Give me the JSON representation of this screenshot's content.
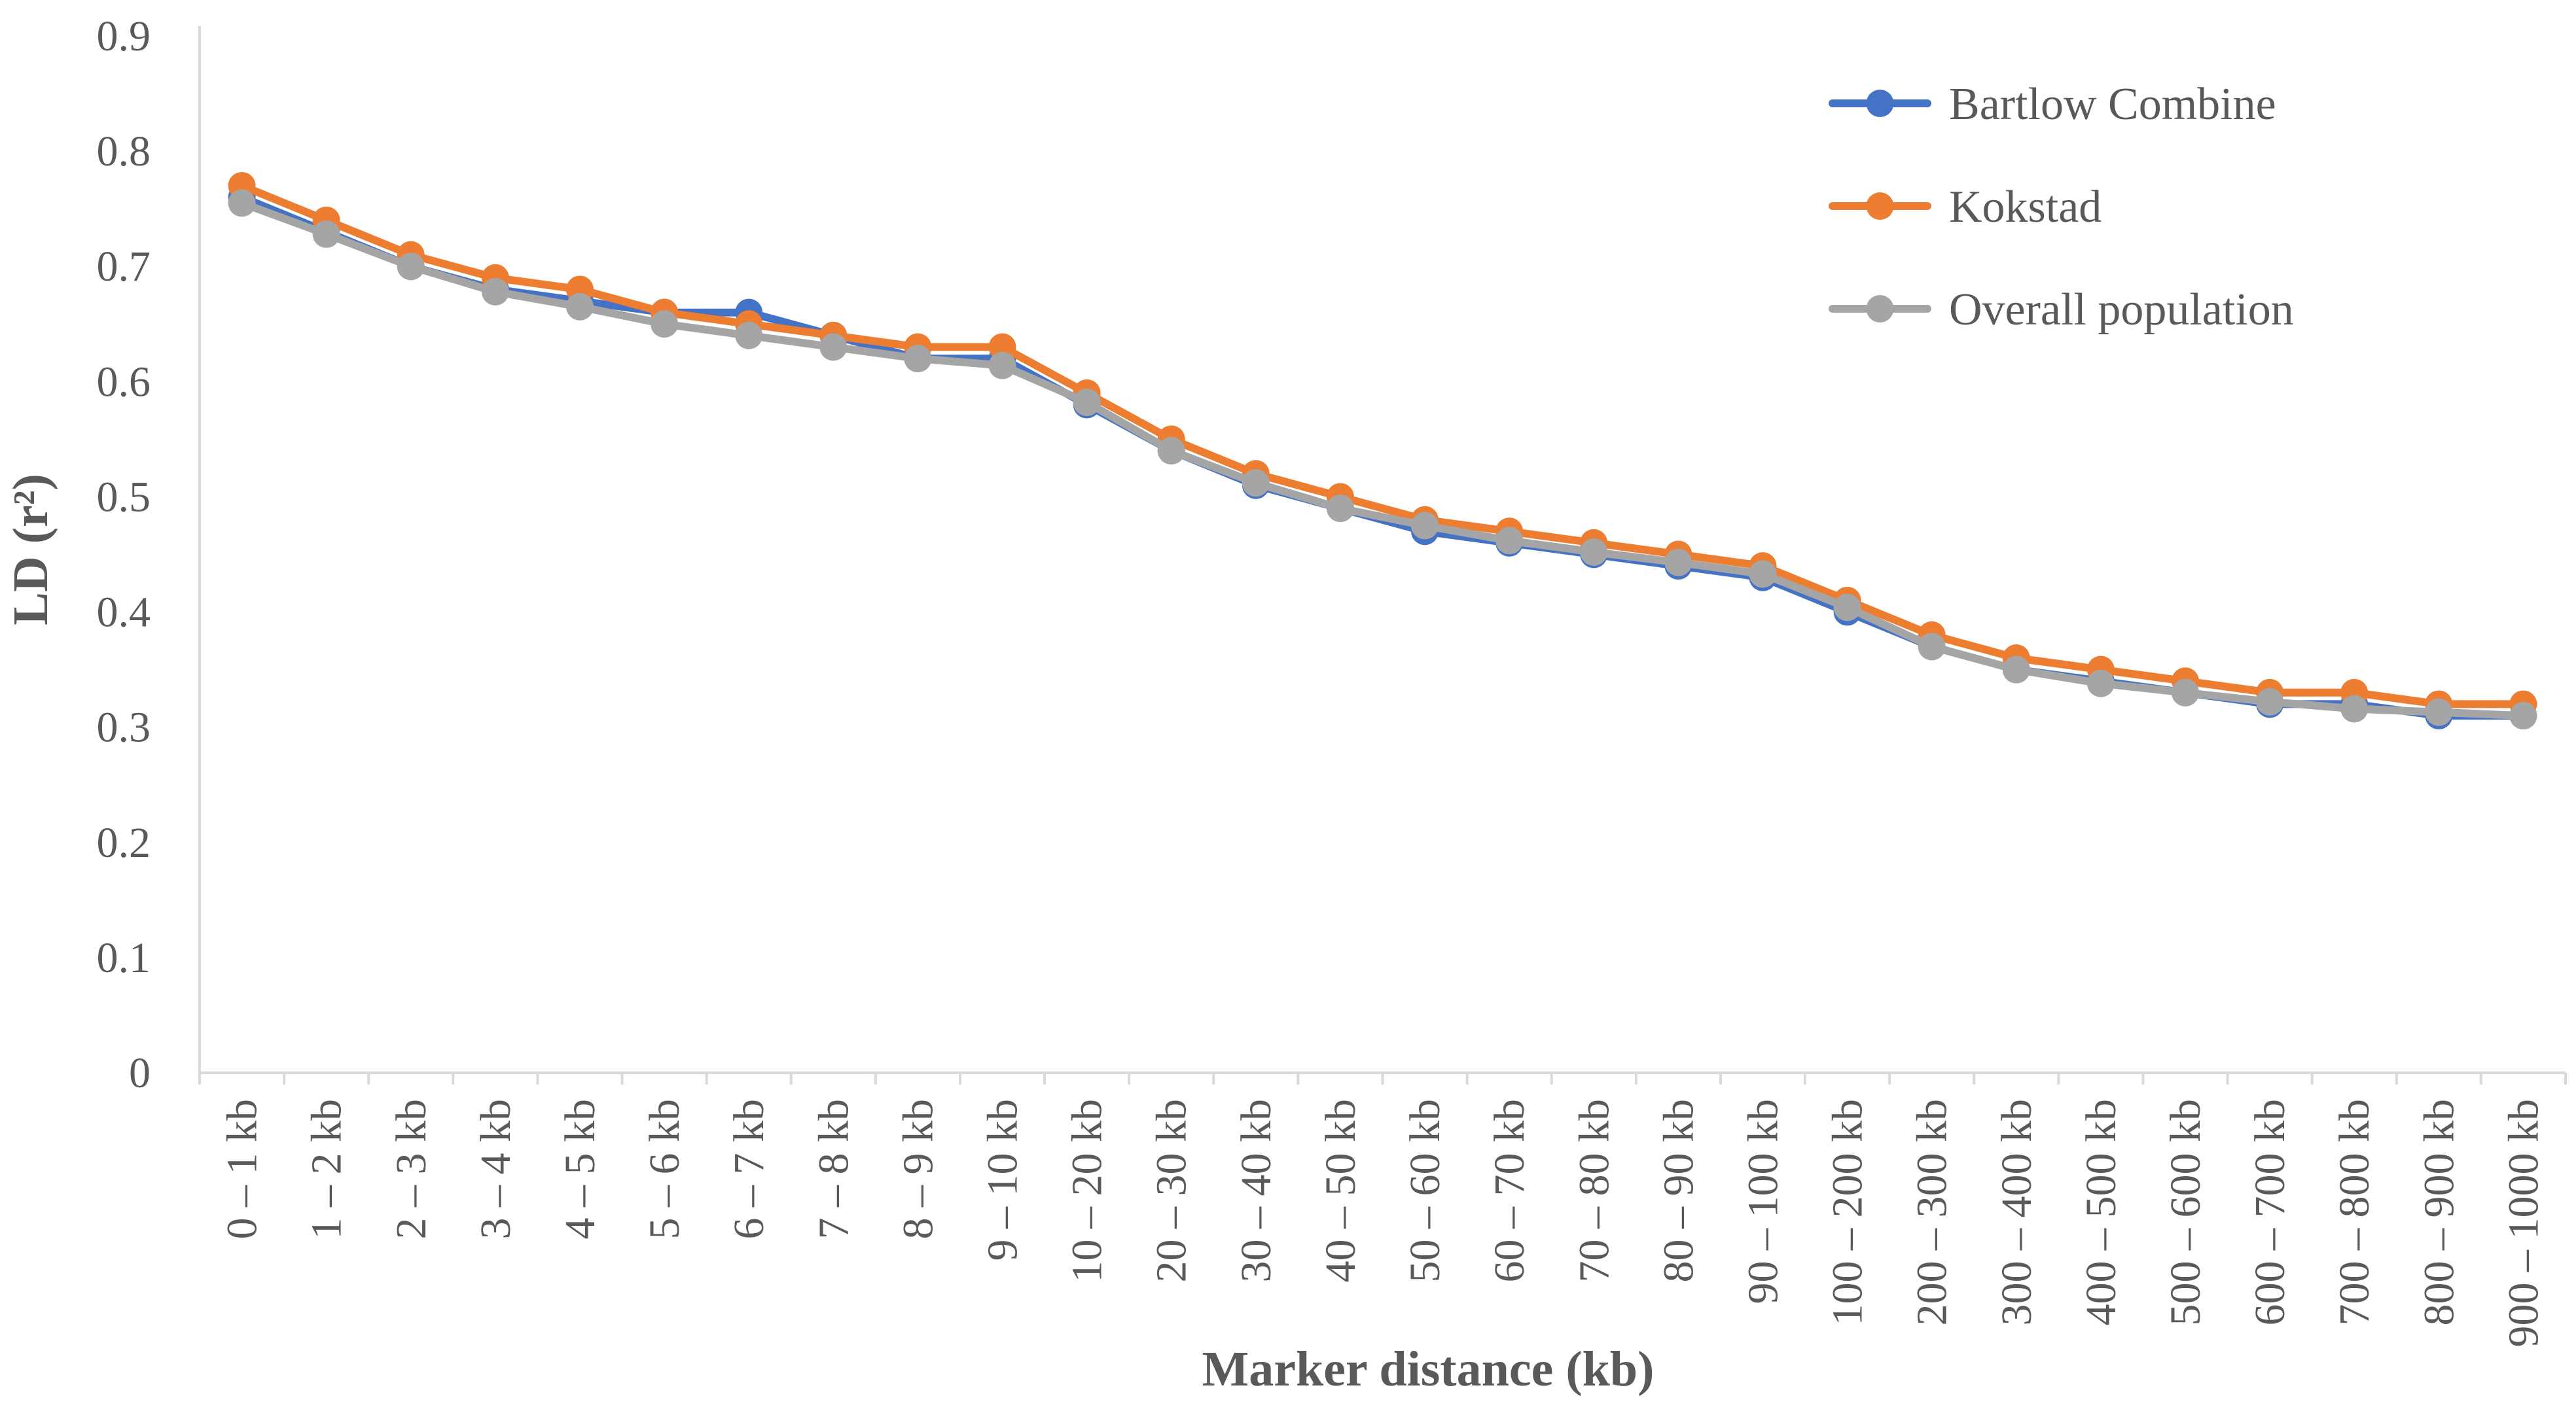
{
  "chart_data": {
    "type": "line",
    "xlabel": "Marker distance (kb)",
    "ylabel": "LD (r²)",
    "ylim": [
      0,
      0.9
    ],
    "yticks": [
      "0",
      "0.1",
      "0.2",
      "0.3",
      "0.4",
      "0.5",
      "0.6",
      "0.7",
      "0.8",
      "0.9"
    ],
    "grid": false,
    "legend_position": "top-right",
    "categories": [
      "0 – 1 kb",
      "1 – 2 kb",
      "2 – 3 kb",
      "3 – 4 kb",
      "4 – 5 kb",
      "5 – 6 kb",
      "6 – 7 kb",
      "7 – 8 kb",
      "8 – 9 kb",
      "9 – 10 kb",
      "10 – 20 kb",
      "20 – 30 kb",
      "30 – 40 kb",
      "40 – 50 kb",
      "50 – 60 kb",
      "60 – 70 kb",
      "70 – 80 kb",
      "80 – 90 kb",
      "90 – 100 kb",
      "100 – 200 kb",
      "200 – 300 kb",
      "300 – 400 kb",
      "400 – 500 kb",
      "500 – 600 kb",
      "600 – 700 kb",
      "700 – 800 kb",
      "800 – 900 kb",
      "900 – 1000 kb"
    ],
    "series": [
      {
        "name": "Bartlow Combine",
        "color": "#4472C4",
        "values": [
          0.76,
          0.73,
          0.7,
          0.68,
          0.67,
          0.66,
          0.66,
          0.64,
          0.62,
          0.62,
          0.58,
          0.54,
          0.51,
          0.49,
          0.47,
          0.46,
          0.45,
          0.44,
          0.43,
          0.4,
          0.37,
          0.35,
          0.34,
          0.33,
          0.32,
          0.32,
          0.31,
          0.31
        ]
      },
      {
        "name": "Kokstad",
        "color": "#ED7D31",
        "values": [
          0.77,
          0.74,
          0.71,
          0.69,
          0.68,
          0.66,
          0.65,
          0.64,
          0.63,
          0.63,
          0.59,
          0.55,
          0.52,
          0.5,
          0.48,
          0.47,
          0.46,
          0.45,
          0.44,
          0.41,
          0.38,
          0.36,
          0.35,
          0.34,
          0.33,
          0.33,
          0.32,
          0.32
        ]
      },
      {
        "name": "Overall population",
        "color": "#A5A5A5",
        "values": [
          0.755,
          0.728,
          0.7,
          0.678,
          0.665,
          0.65,
          0.64,
          0.63,
          0.62,
          0.614,
          0.582,
          0.54,
          0.512,
          0.49,
          0.475,
          0.462,
          0.452,
          0.443,
          0.433,
          0.404,
          0.37,
          0.35,
          0.338,
          0.33,
          0.322,
          0.316,
          0.313,
          0.31
        ]
      }
    ]
  }
}
